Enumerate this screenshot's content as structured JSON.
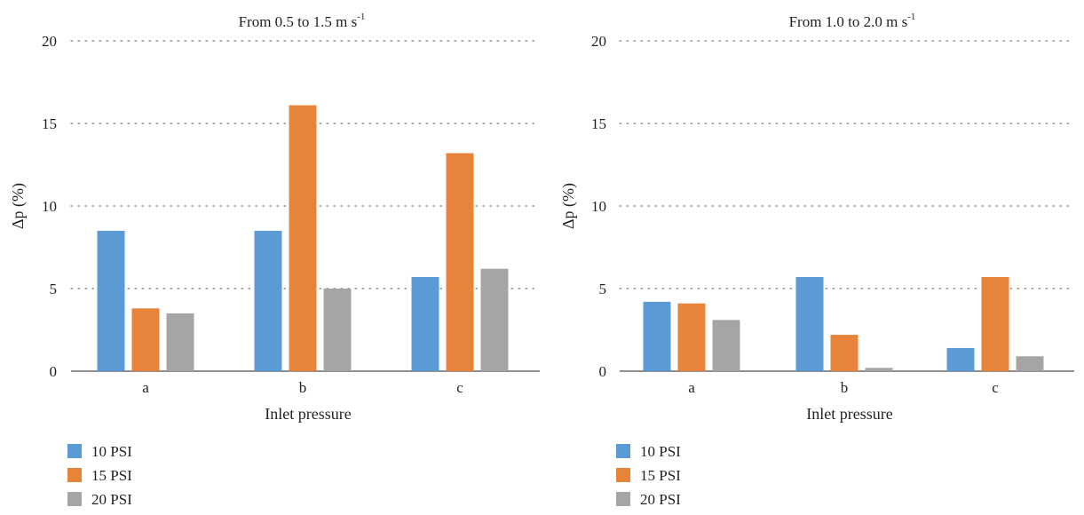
{
  "chart_data": [
    {
      "type": "bar",
      "title": "From 0.5 to 1.5 m s",
      "title_superscript": "-1",
      "xlabel": "Inlet pressure",
      "ylabel": "Δp (%)",
      "ylim": [
        0,
        20
      ],
      "yticks": [
        "0",
        "5",
        "10",
        "15",
        "20"
      ],
      "grid": "dotted horizontal",
      "legend_placement": "bottom-left",
      "categories": [
        "a",
        "b",
        "c"
      ],
      "series": [
        {
          "name": "10 PSI",
          "color": "#5b9bd5",
          "values": [
            8.5,
            8.5,
            5.7
          ]
        },
        {
          "name": "15 PSI",
          "color": "#e8833a",
          "values": [
            3.8,
            16.1,
            13.2
          ]
        },
        {
          "name": "20 PSI",
          "color": "#a5a5a5",
          "values": [
            3.5,
            5.0,
            6.2
          ]
        }
      ]
    },
    {
      "type": "bar",
      "title": "From 1.0 to 2.0 m s",
      "title_superscript": "-1",
      "xlabel": "Inlet pressure",
      "ylabel": "Δp (%)",
      "ylim": [
        0,
        20
      ],
      "yticks": [
        "0",
        "5",
        "10",
        "15",
        "20"
      ],
      "grid": "dotted horizontal",
      "legend_placement": "bottom-left",
      "categories": [
        "a",
        "b",
        "c"
      ],
      "series": [
        {
          "name": "10 PSI",
          "color": "#5b9bd5",
          "values": [
            4.2,
            5.7,
            1.4
          ]
        },
        {
          "name": "15 PSI",
          "color": "#e8833a",
          "values": [
            4.1,
            2.2,
            5.7
          ]
        },
        {
          "name": "20 PSI",
          "color": "#a5a5a5",
          "values": [
            3.1,
            0.2,
            0.9
          ]
        }
      ]
    }
  ]
}
